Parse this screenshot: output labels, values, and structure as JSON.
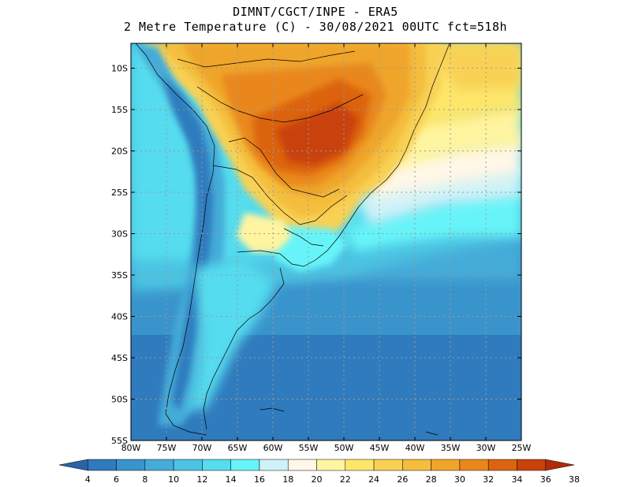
{
  "header": {
    "line1": "DIMNT/CGCT/INPE  -   ERA5",
    "line2": "2 Metre Temperature (C)  -   30/08/2021 00UTC fct=518h"
  },
  "map": {
    "lat_ticks": [
      {
        "value": -10,
        "label": "10S"
      },
      {
        "value": -15,
        "label": "15S"
      },
      {
        "value": -20,
        "label": "20S"
      },
      {
        "value": -25,
        "label": "25S"
      },
      {
        "value": -30,
        "label": "30S"
      },
      {
        "value": -35,
        "label": "35S"
      },
      {
        "value": -40,
        "label": "40S"
      },
      {
        "value": -45,
        "label": "45S"
      },
      {
        "value": -50,
        "label": "50S"
      },
      {
        "value": -55,
        "label": "55S"
      }
    ],
    "lon_ticks": [
      {
        "value": -80,
        "label": "80W"
      },
      {
        "value": -75,
        "label": "75W"
      },
      {
        "value": -70,
        "label": "70W"
      },
      {
        "value": -65,
        "label": "65W"
      },
      {
        "value": -60,
        "label": "60W"
      },
      {
        "value": -55,
        "label": "55W"
      },
      {
        "value": -50,
        "label": "50W"
      },
      {
        "value": -45,
        "label": "45W"
      },
      {
        "value": -40,
        "label": "40W"
      },
      {
        "value": -35,
        "label": "35W"
      },
      {
        "value": -30,
        "label": "30W"
      },
      {
        "value": -25,
        "label": "25W"
      }
    ],
    "lat_range": [
      -55,
      -7
    ],
    "lon_range": [
      -80,
      -25
    ]
  },
  "colorbar": {
    "labels": [
      "4",
      "6",
      "8",
      "10",
      "12",
      "14",
      "16",
      "18",
      "20",
      "22",
      "24",
      "26",
      "28",
      "30",
      "32",
      "34",
      "36",
      "38"
    ],
    "colors": [
      "#2a63a8",
      "#2f7bbd",
      "#3a94cc",
      "#45acd8",
      "#4cc3e2",
      "#55dcee",
      "#66f4f8",
      "#cdf2f8",
      "#fff7e8",
      "#fff4a0",
      "#fde66a",
      "#f8d154",
      "#f4bd3e",
      "#efa52a",
      "#e9871c",
      "#dc6410",
      "#c9420a",
      "#b02a05"
    ]
  }
}
